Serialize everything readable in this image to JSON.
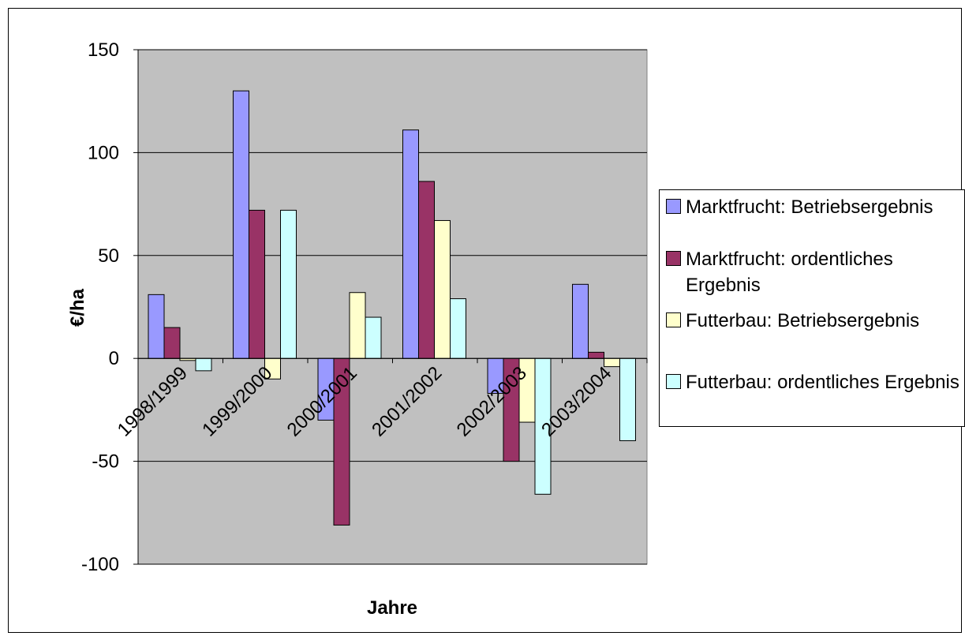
{
  "chart_data": {
    "type": "bar",
    "categories": [
      "1998/1999",
      "1999/2000",
      "2000/2001",
      "2001/2002",
      "2002/2003",
      "2003/2004"
    ],
    "series": [
      {
        "name": "Marktfrucht: Betriebsergebnis",
        "color": "#9999ff",
        "values": [
          31,
          130,
          -30,
          111,
          -17,
          36
        ]
      },
      {
        "name": "Marktfrucht: ordentliches Ergebnis",
        "color": "#993366",
        "values": [
          15,
          72,
          -81,
          86,
          -50,
          3
        ]
      },
      {
        "name": "Futterbau: Betriebsergebnis",
        "color": "#ffffcc",
        "values": [
          -1,
          -10,
          32,
          67,
          -31,
          -4
        ]
      },
      {
        "name": "Futterbau: ordentliches Ergebnis",
        "color": "#ccffff",
        "values": [
          -6,
          72,
          20,
          29,
          -66,
          -40
        ]
      }
    ],
    "xlabel": "Jahre",
    "ylabel": "€/ha",
    "ylim": [
      -100,
      150
    ],
    "yticks": [
      150,
      100,
      50,
      0,
      -50,
      -100
    ],
    "plot_background": "#c0c0c0",
    "grid": true,
    "legend_position": "right"
  }
}
